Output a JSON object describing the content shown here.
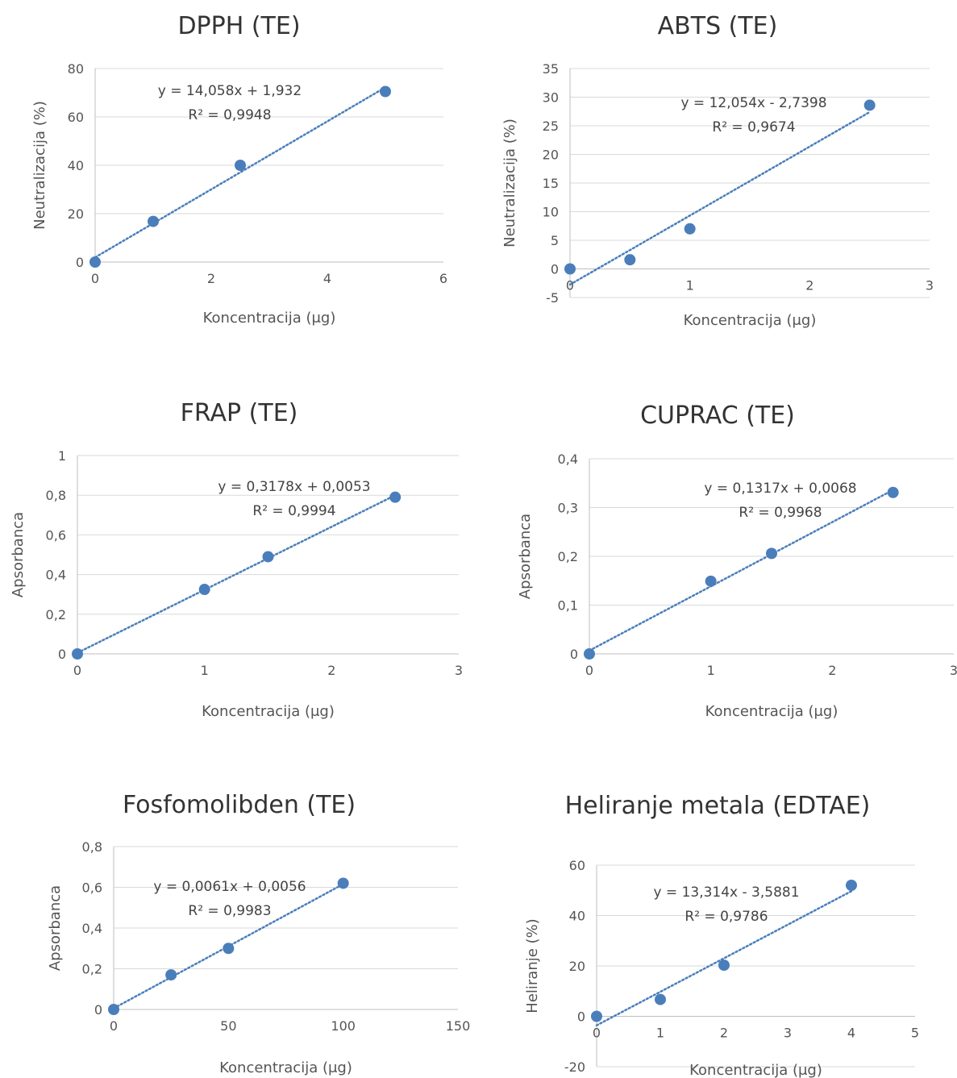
{
  "chart_data": [
    {
      "type": "scatter",
      "title": "DPPH (TE)",
      "xlabel": "Koncentracija (μg)",
      "ylabel": "Neutralizacija (%)",
      "xlim": [
        0,
        6
      ],
      "xticks": [
        0,
        2,
        4,
        6
      ],
      "ylim": [
        0,
        80
      ],
      "yticks": [
        0,
        20,
        40,
        60,
        80
      ],
      "grid": "horizontal",
      "points": {
        "x": [
          0,
          1,
          2.5,
          5
        ],
        "y": [
          0,
          16.8,
          40,
          70.5
        ]
      },
      "trendline": {
        "slope": 14.058,
        "intercept": 1.932,
        "x_range": [
          0,
          5
        ]
      },
      "equation": "y = 14,058x + 1,932",
      "r2": "R² = 0,9948"
    },
    {
      "type": "scatter",
      "title": "ABTS (TE)",
      "xlabel": "Koncentracija (μg)",
      "ylabel": "Neutralizacija (%)",
      "xlim": [
        0,
        3
      ],
      "xticks": [
        0,
        1,
        2,
        3
      ],
      "ylim": [
        -5,
        35
      ],
      "yticks": [
        -5,
        0,
        5,
        10,
        15,
        20,
        25,
        30,
        35
      ],
      "grid": "horizontal",
      "points": {
        "x": [
          0,
          0.5,
          1,
          2.5
        ],
        "y": [
          0,
          1.6,
          7,
          28.6
        ]
      },
      "trendline": {
        "slope": 12.054,
        "intercept": -2.7398,
        "x_range": [
          0,
          2.5
        ]
      },
      "equation": "y = 12,054x - 2,7398",
      "r2": "R² = 0,9674"
    },
    {
      "type": "scatter",
      "title": "FRAP (TE)",
      "xlabel": "Koncentracija (μg)",
      "ylabel": "Apsorbanca",
      "xlim": [
        0,
        3
      ],
      "xticks": [
        0,
        1,
        2,
        3
      ],
      "ylim": [
        0,
        1
      ],
      "yticks": [
        0,
        0.2,
        0.4,
        0.6,
        0.8,
        1
      ],
      "ytick_labels": [
        "0",
        "0,2",
        "0,4",
        "0,6",
        "0,8",
        "1"
      ],
      "grid": "horizontal",
      "points": {
        "x": [
          0,
          1,
          1.5,
          2.5
        ],
        "y": [
          0,
          0.325,
          0.49,
          0.79
        ]
      },
      "trendline": {
        "slope": 0.3178,
        "intercept": 0.0053,
        "x_range": [
          0,
          2.5
        ]
      },
      "equation": "y = 0,3178x + 0,0053",
      "r2": "R² = 0,9994"
    },
    {
      "type": "scatter",
      "title": "CUPRAC (TE)",
      "xlabel": "Koncentracija (μg)",
      "ylabel": "Apsorbanca",
      "xlim": [
        0,
        3
      ],
      "xticks": [
        0,
        1,
        2,
        3
      ],
      "ylim": [
        0,
        0.4
      ],
      "yticks": [
        0,
        0.1,
        0.2,
        0.3,
        0.4
      ],
      "ytick_labels": [
        "0",
        "0,1",
        "0,2",
        "0,3",
        "0,4"
      ],
      "grid": "horizontal",
      "points": {
        "x": [
          0,
          1,
          1.5,
          2.5
        ],
        "y": [
          0,
          0.149,
          0.206,
          0.331
        ]
      },
      "trendline": {
        "slope": 0.1317,
        "intercept": 0.0068,
        "x_range": [
          0,
          2.5
        ]
      },
      "equation": "y = 0,1317x + 0,0068",
      "r2": "R² = 0,9968"
    },
    {
      "type": "scatter",
      "title": "Fosfomolibden (TE)",
      "xlabel": "Koncentracija (μg)",
      "ylabel": "Apsorbanca",
      "xlim": [
        0,
        150
      ],
      "xticks": [
        0,
        50,
        100,
        150
      ],
      "ylim": [
        0,
        0.8
      ],
      "yticks": [
        0,
        0.2,
        0.4,
        0.6,
        0.8
      ],
      "ytick_labels": [
        "0",
        "0,2",
        "0,4",
        "0,6",
        "0,8"
      ],
      "grid": "horizontal",
      "points": {
        "x": [
          0,
          25,
          50,
          100
        ],
        "y": [
          0,
          0.17,
          0.3,
          0.62
        ]
      },
      "trendline": {
        "slope": 0.0061,
        "intercept": 0.0056,
        "x_range": [
          0,
          100
        ]
      },
      "equation": "y = 0,0061x + 0,0056",
      "r2": "R² = 0,9983"
    },
    {
      "type": "scatter",
      "title": "Heliranje metala (EDTAE)",
      "xlabel": "Koncentracija (μg)",
      "ylabel": "Heliranje (%)",
      "xlim": [
        0,
        5
      ],
      "xticks": [
        0,
        1,
        2,
        3,
        4,
        5
      ],
      "ylim": [
        -20,
        60
      ],
      "yticks": [
        -20,
        0,
        20,
        40,
        60
      ],
      "grid": "horizontal",
      "points": {
        "x": [
          0,
          1,
          2,
          4
        ],
        "y": [
          0,
          6.7,
          20.3,
          52
        ]
      },
      "trendline": {
        "slope": 13.314,
        "intercept": -3.5881,
        "x_range": [
          0,
          4
        ]
      },
      "equation": "y = 13,314x - 3,5881",
      "r2": "R² = 0,9786"
    }
  ],
  "colors": {
    "marker": "#4a7ebb",
    "trendline": "#4a7ebb",
    "grid": "#d9d9d9",
    "axis": "#bfbfbf"
  }
}
